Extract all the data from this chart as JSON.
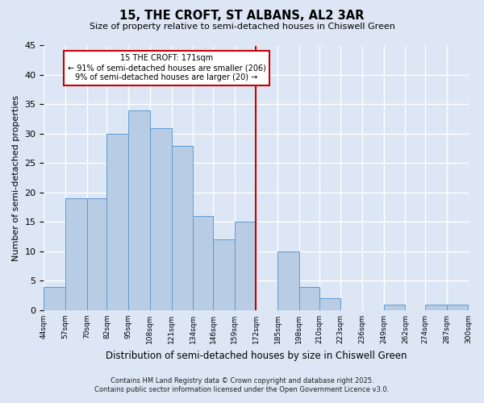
{
  "title": "15, THE CROFT, ST ALBANS, AL2 3AR",
  "subtitle": "Size of property relative to semi-detached houses in Chiswell Green",
  "xlabel": "Distribution of semi-detached houses by size in Chiswell Green",
  "ylabel": "Number of semi-detached properties",
  "bin_edges": [
    44,
    57,
    70,
    82,
    95,
    108,
    121,
    134,
    146,
    159,
    172,
    185,
    198,
    210,
    223,
    236,
    249,
    262,
    274,
    287,
    300
  ],
  "counts": [
    4,
    19,
    19,
    30,
    34,
    31,
    28,
    16,
    12,
    15,
    0,
    10,
    4,
    2,
    0,
    0,
    1,
    0,
    1,
    1
  ],
  "bar_facecolor": "#b8cce4",
  "bar_edgecolor": "#5b9bd5",
  "vline_x": 172,
  "vline_color": "#cc0000",
  "annotation_title": "15 THE CROFT: 171sqm",
  "annotation_line1": "← 91% of semi-detached houses are smaller (206)",
  "annotation_line2": "9% of semi-detached houses are larger (20) →",
  "annotation_box_edgecolor": "#cc0000",
  "annotation_box_facecolor": "#ffffff",
  "ylim": [
    0,
    45
  ],
  "yticks": [
    0,
    5,
    10,
    15,
    20,
    25,
    30,
    35,
    40,
    45
  ],
  "background_color": "#dce6f5",
  "grid_color": "#ffffff",
  "footnote1": "Contains HM Land Registry data © Crown copyright and database right 2025.",
  "footnote2": "Contains public sector information licensed under the Open Government Licence v3.0.",
  "tick_labels": [
    "44sqm",
    "57sqm",
    "70sqm",
    "82sqm",
    "95sqm",
    "108sqm",
    "121sqm",
    "134sqm",
    "146sqm",
    "159sqm",
    "172sqm",
    "185sqm",
    "198sqm",
    "210sqm",
    "223sqm",
    "236sqm",
    "249sqm",
    "262sqm",
    "274sqm",
    "287sqm",
    "300sqm"
  ]
}
